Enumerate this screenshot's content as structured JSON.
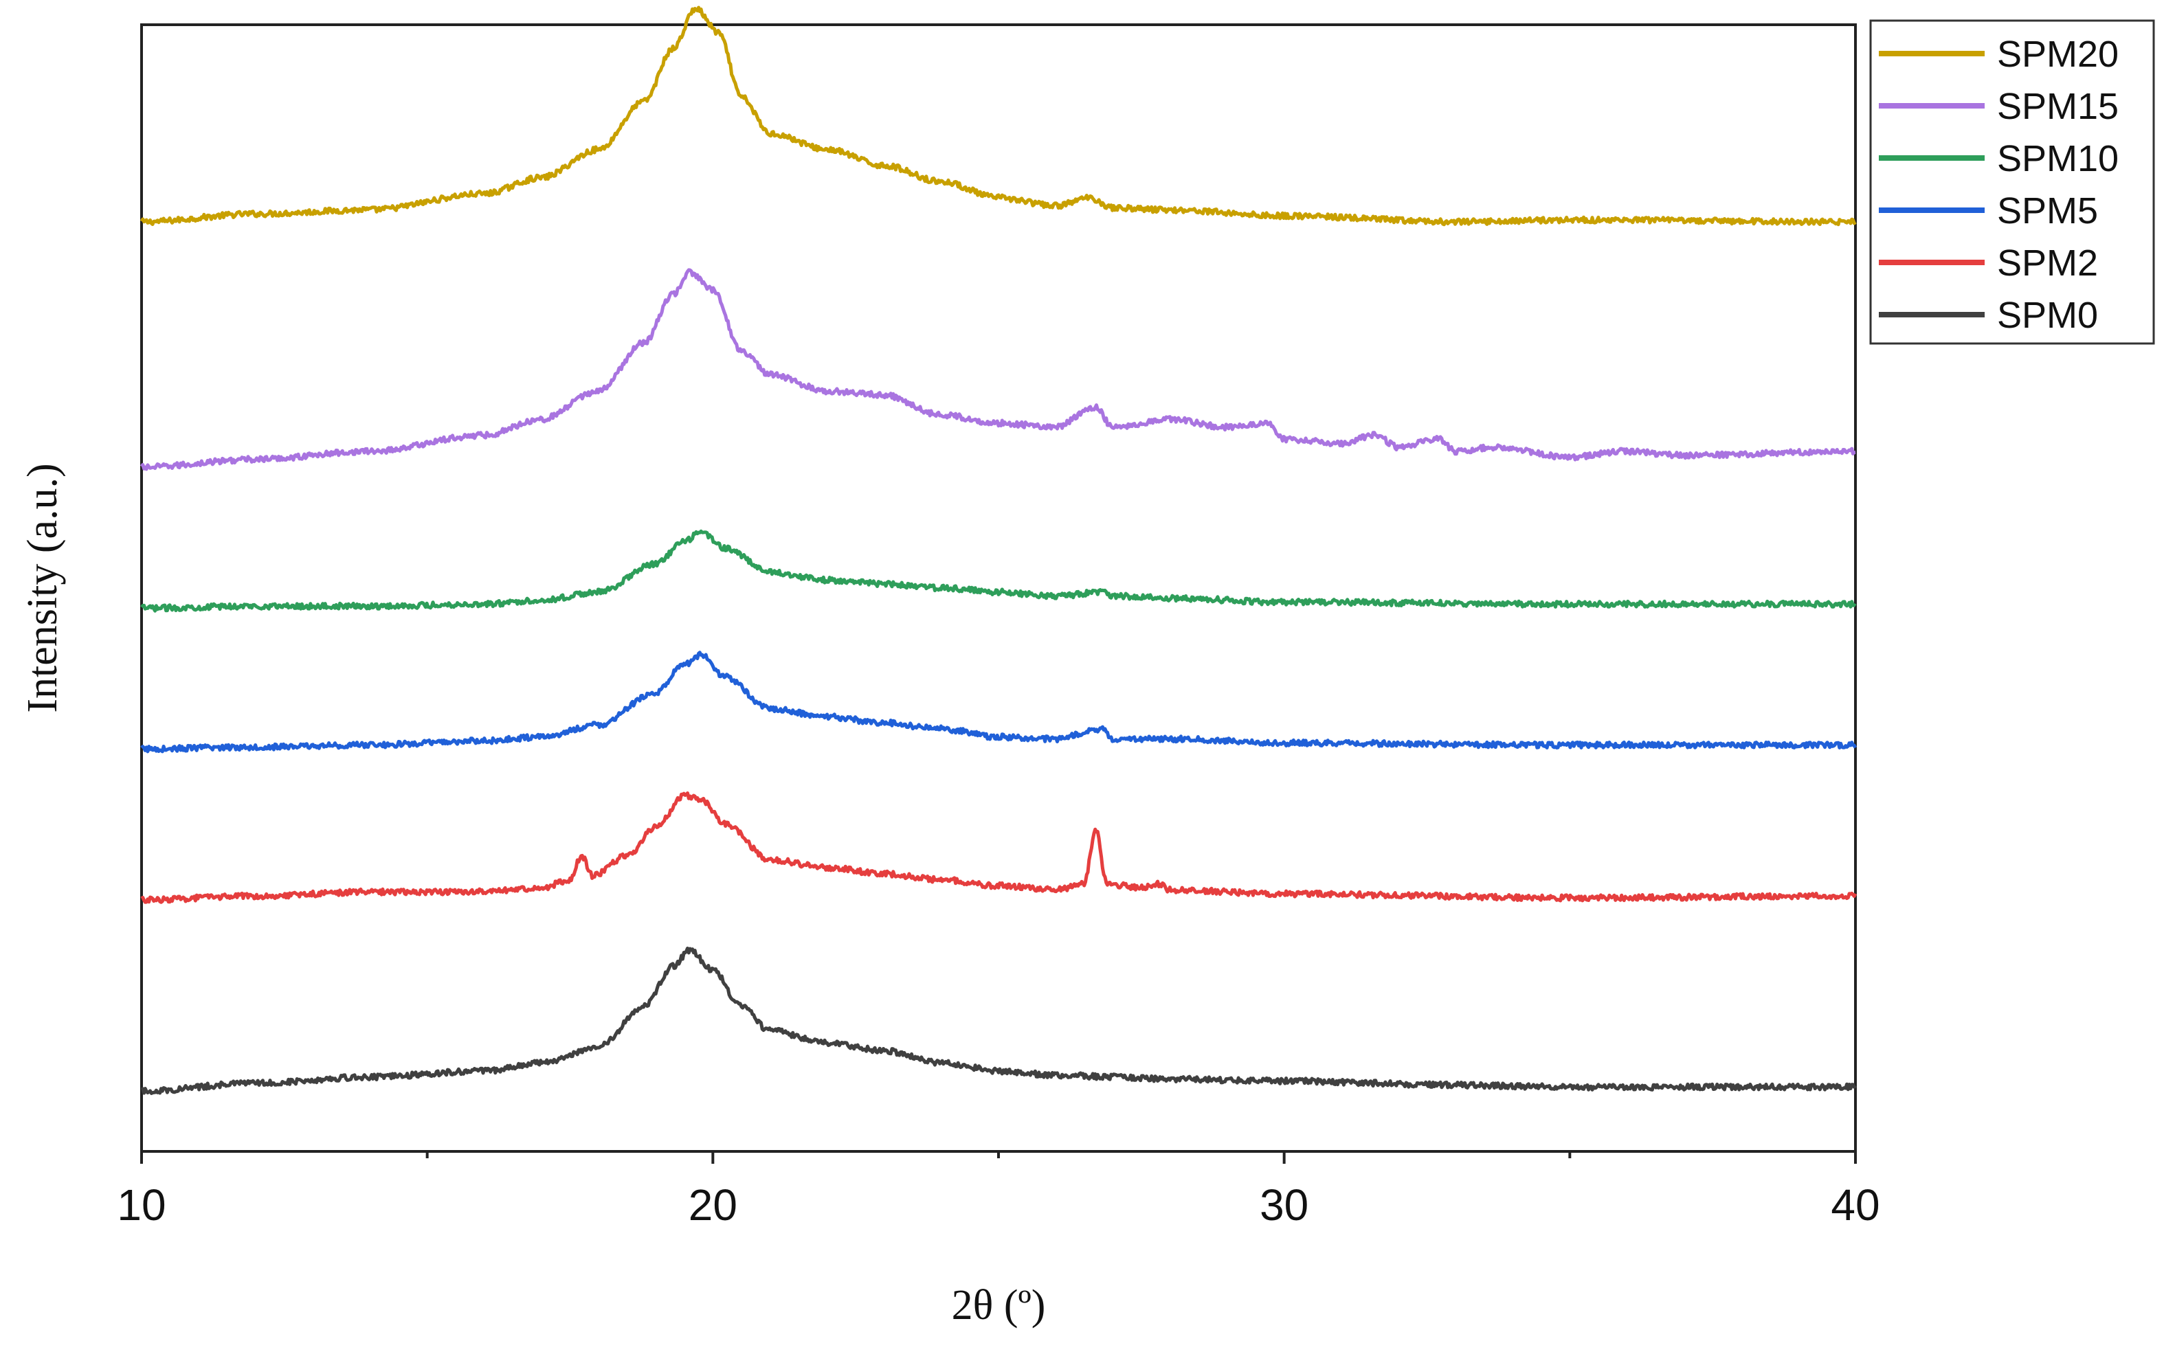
{
  "chart_data": {
    "type": "line",
    "title": "",
    "xlabel": "2θ (º)",
    "ylabel": "Intensity (a.u.)",
    "xlim": [
      10,
      40
    ],
    "ylim": [
      0,
      5.6
    ],
    "xticks": [
      10,
      20,
      30,
      40
    ],
    "xticks_minor": [
      15,
      25,
      35
    ],
    "yticks": [],
    "grid": false,
    "legend_position": "outside-top-right",
    "series": [
      {
        "name": "SPM20",
        "color": "#C8A000",
        "offset": 4.6,
        "points": [
          [
            10,
            0.02
          ],
          [
            12,
            0.06
          ],
          [
            14,
            0.08
          ],
          [
            16,
            0.16
          ],
          [
            17,
            0.24
          ],
          [
            18,
            0.38
          ],
          [
            18.8,
            0.62
          ],
          [
            19.3,
            0.88
          ],
          [
            19.7,
            1.08
          ],
          [
            20.1,
            0.96
          ],
          [
            20.5,
            0.64
          ],
          [
            21,
            0.46
          ],
          [
            22,
            0.38
          ],
          [
            23,
            0.3
          ],
          [
            24,
            0.22
          ],
          [
            25,
            0.14
          ],
          [
            26,
            0.1
          ],
          [
            26.6,
            0.14
          ],
          [
            27,
            0.09
          ],
          [
            28,
            0.08
          ],
          [
            30,
            0.05
          ],
          [
            33,
            0.02
          ],
          [
            35,
            0.03
          ],
          [
            40,
            0.02
          ]
        ]
      },
      {
        "name": "SPM15",
        "color": "#A974E0",
        "offset": 3.4,
        "points": [
          [
            10,
            0.0
          ],
          [
            12,
            0.04
          ],
          [
            14,
            0.08
          ],
          [
            16,
            0.16
          ],
          [
            17,
            0.24
          ],
          [
            18,
            0.38
          ],
          [
            18.8,
            0.62
          ],
          [
            19.3,
            0.86
          ],
          [
            19.6,
            0.97
          ],
          [
            20.0,
            0.88
          ],
          [
            20.5,
            0.58
          ],
          [
            21,
            0.46
          ],
          [
            22,
            0.38
          ],
          [
            23,
            0.36
          ],
          [
            24,
            0.26
          ],
          [
            25,
            0.22
          ],
          [
            26,
            0.2
          ],
          [
            26.7,
            0.3
          ],
          [
            27,
            0.2
          ],
          [
            28,
            0.24
          ],
          [
            29,
            0.2
          ],
          [
            29.7,
            0.22
          ],
          [
            30,
            0.14
          ],
          [
            31,
            0.12
          ],
          [
            31.6,
            0.16
          ],
          [
            32,
            0.1
          ],
          [
            32.7,
            0.14
          ],
          [
            33,
            0.08
          ],
          [
            33.7,
            0.1
          ],
          [
            35,
            0.05
          ],
          [
            36,
            0.08
          ],
          [
            37,
            0.06
          ],
          [
            40,
            0.08
          ]
        ]
      },
      {
        "name": "SPM10",
        "color": "#2E9E5A",
        "offset": 2.7,
        "points": [
          [
            10,
            0.0
          ],
          [
            12,
            0.01
          ],
          [
            14,
            0.01
          ],
          [
            16,
            0.02
          ],
          [
            17,
            0.04
          ],
          [
            18,
            0.08
          ],
          [
            19,
            0.22
          ],
          [
            19.5,
            0.33
          ],
          [
            19.8,
            0.38
          ],
          [
            20.2,
            0.3
          ],
          [
            21,
            0.18
          ],
          [
            22,
            0.14
          ],
          [
            23,
            0.12
          ],
          [
            24,
            0.1
          ],
          [
            25,
            0.08
          ],
          [
            26,
            0.06
          ],
          [
            26.8,
            0.08
          ],
          [
            27,
            0.06
          ],
          [
            28,
            0.05
          ],
          [
            30,
            0.03
          ],
          [
            35,
            0.02
          ],
          [
            40,
            0.02
          ]
        ]
      },
      {
        "name": "SPM5",
        "color": "#2060D8",
        "offset": 2.0,
        "points": [
          [
            10,
            0.0
          ],
          [
            12,
            0.01
          ],
          [
            14,
            0.02
          ],
          [
            16,
            0.04
          ],
          [
            17,
            0.06
          ],
          [
            18,
            0.12
          ],
          [
            19,
            0.28
          ],
          [
            19.5,
            0.42
          ],
          [
            19.8,
            0.47
          ],
          [
            20.2,
            0.36
          ],
          [
            21,
            0.2
          ],
          [
            22,
            0.16
          ],
          [
            23,
            0.13
          ],
          [
            24,
            0.1
          ],
          [
            25,
            0.06
          ],
          [
            26,
            0.05
          ],
          [
            26.8,
            0.1
          ],
          [
            27,
            0.05
          ],
          [
            28,
            0.05
          ],
          [
            30,
            0.03
          ],
          [
            35,
            0.02
          ],
          [
            40,
            0.02
          ]
        ]
      },
      {
        "name": "SPM2",
        "color": "#E53E3E",
        "offset": 1.25,
        "points": [
          [
            10,
            0.0
          ],
          [
            12,
            0.02
          ],
          [
            14,
            0.04
          ],
          [
            16,
            0.04
          ],
          [
            17,
            0.06
          ],
          [
            17.5,
            0.1
          ],
          [
            17.7,
            0.22
          ],
          [
            17.9,
            0.12
          ],
          [
            18.5,
            0.22
          ],
          [
            19,
            0.36
          ],
          [
            19.5,
            0.52
          ],
          [
            19.8,
            0.5
          ],
          [
            20.2,
            0.38
          ],
          [
            21,
            0.2
          ],
          [
            22,
            0.16
          ],
          [
            23,
            0.13
          ],
          [
            24,
            0.1
          ],
          [
            25,
            0.07
          ],
          [
            26,
            0.05
          ],
          [
            26.5,
            0.08
          ],
          [
            26.7,
            0.35
          ],
          [
            26.9,
            0.08
          ],
          [
            27.5,
            0.06
          ],
          [
            27.8,
            0.08
          ],
          [
            28,
            0.05
          ],
          [
            30,
            0.03
          ],
          [
            35,
            0.01
          ],
          [
            40,
            0.02
          ]
        ]
      },
      {
        "name": "SPM0",
        "color": "#404040",
        "offset": 0.3,
        "points": [
          [
            10,
            0.0
          ],
          [
            12,
            0.04
          ],
          [
            14,
            0.07
          ],
          [
            16,
            0.1
          ],
          [
            17,
            0.14
          ],
          [
            18,
            0.22
          ],
          [
            18.8,
            0.42
          ],
          [
            19.3,
            0.62
          ],
          [
            19.6,
            0.7
          ],
          [
            20.0,
            0.6
          ],
          [
            20.5,
            0.42
          ],
          [
            21,
            0.3
          ],
          [
            22,
            0.24
          ],
          [
            23,
            0.2
          ],
          [
            24,
            0.14
          ],
          [
            25,
            0.1
          ],
          [
            26,
            0.08
          ],
          [
            27,
            0.07
          ],
          [
            28,
            0.06
          ],
          [
            30,
            0.05
          ],
          [
            33,
            0.03
          ],
          [
            35,
            0.02
          ],
          [
            40,
            0.02
          ]
        ]
      }
    ]
  }
}
